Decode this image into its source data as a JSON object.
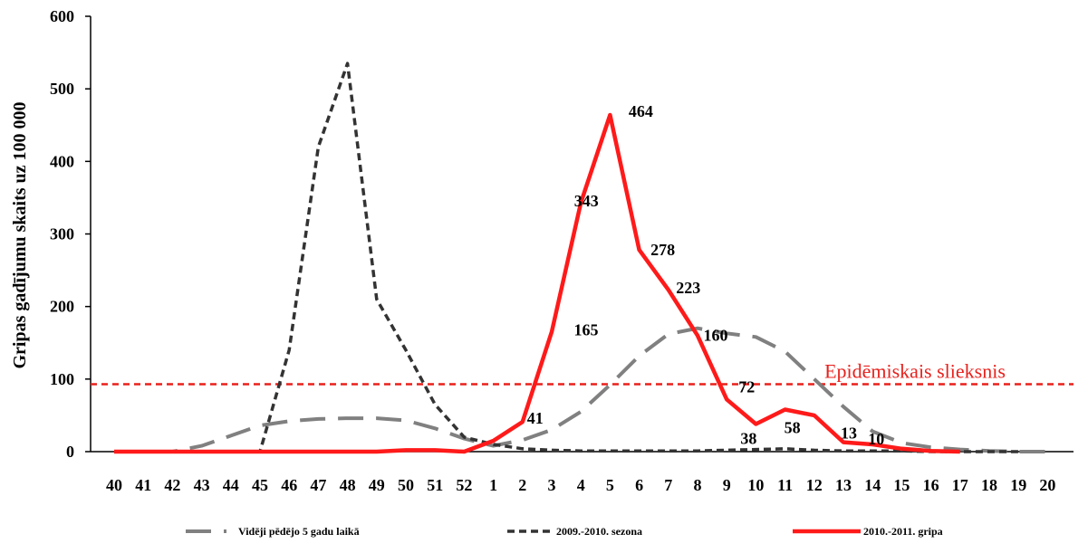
{
  "chart_data": {
    "type": "line",
    "title": "",
    "ylabel": "Gripas gadījumu skaits uz 100 000",
    "xlabel": "",
    "ylim": [
      0,
      600
    ],
    "yticks": [
      0,
      100,
      200,
      300,
      400,
      500,
      600
    ],
    "categories": [
      "40",
      "41",
      "42",
      "43",
      "44",
      "45",
      "46",
      "47",
      "48",
      "49",
      "50",
      "51",
      "52",
      "1",
      "2",
      "3",
      "4",
      "5",
      "6",
      "7",
      "8",
      "9",
      "10",
      "11",
      "12",
      "13",
      "14",
      "15",
      "16",
      "17",
      "18",
      "19",
      "20"
    ],
    "series": [
      {
        "name": "Vidēji pēdējo 5 gadu laikā",
        "color": "#808080",
        "style": "long-dash",
        "values": [
          0,
          0,
          0,
          8,
          22,
          36,
          42,
          45,
          46,
          46,
          43,
          32,
          18,
          8,
          16,
          30,
          55,
          92,
          132,
          162,
          170,
          163,
          158,
          138,
          100,
          62,
          28,
          12,
          6,
          3,
          1,
          0,
          0
        ]
      },
      {
        "name": "2009.-2010. sezona",
        "color": "#333333",
        "style": "short-dash",
        "values": [
          0,
          0,
          0,
          0,
          0,
          0,
          140,
          420,
          535,
          210,
          140,
          65,
          20,
          10,
          4,
          2,
          1,
          1,
          1,
          1,
          1,
          2,
          3,
          4,
          2,
          1,
          1,
          1,
          0,
          0,
          0,
          0,
          null
        ]
      },
      {
        "name": "2010.-2011. gripa",
        "color": "#ff1a1a",
        "style": "solid",
        "values": [
          0,
          0,
          0,
          0,
          0,
          0,
          0,
          0,
          0,
          0,
          2,
          2,
          0,
          15,
          41,
          165,
          343,
          464,
          278,
          223,
          160,
          72,
          38,
          58,
          50,
          13,
          10,
          4,
          1,
          0,
          null,
          null,
          null
        ]
      }
    ],
    "data_labels": [
      {
        "text": "41",
        "series": 2,
        "index": 14
      },
      {
        "text": "165",
        "series": 2,
        "index": 15
      },
      {
        "text": "343",
        "series": 2,
        "index": 16
      },
      {
        "text": "464",
        "series": 2,
        "index": 17
      },
      {
        "text": "278",
        "series": 2,
        "index": 18
      },
      {
        "text": "223",
        "series": 2,
        "index": 19
      },
      {
        "text": "160",
        "series": 2,
        "index": 20
      },
      {
        "text": "72",
        "series": 2,
        "index": 21
      },
      {
        "text": "38",
        "series": 2,
        "index": 22
      },
      {
        "text": "58",
        "series": 2,
        "index": 23
      },
      {
        "text": "13",
        "series": 2,
        "index": 25
      },
      {
        "text": "10",
        "series": 2,
        "index": 26
      }
    ],
    "threshold": {
      "label": "Epidēmiskais slieksnis",
      "value": 93,
      "color": "#e8211c"
    },
    "legend": {
      "position": "bottom"
    },
    "grid": false
  }
}
